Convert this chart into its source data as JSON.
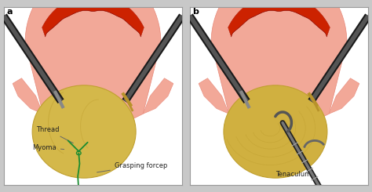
{
  "panel_a_label": "a",
  "panel_b_label": "b",
  "bg_color": "#c8c8c8",
  "panel_bg": "#ffffff",
  "uterus_pink": "#f2a898",
  "uterus_pink_dark": "#e88878",
  "uterus_red": "#cc2200",
  "myoma_gold": "#d4b84a",
  "myoma_gold_dark": "#b89828",
  "myoma_shadow": "#c0a030",
  "instrument_dark": "#1a1a1a",
  "instrument_mid": "#444444",
  "instrument_light": "#888888",
  "steel_color": "#999999",
  "thread_color": "#1a8c30",
  "annotation_line": "#666666",
  "text_color": "#222222",
  "labels_a": [
    "Thread",
    "Myoma",
    "Grasping forcep"
  ],
  "labels_b": [
    "Tenaculum"
  ],
  "font_size": 6.0,
  "border_color": "#999999"
}
